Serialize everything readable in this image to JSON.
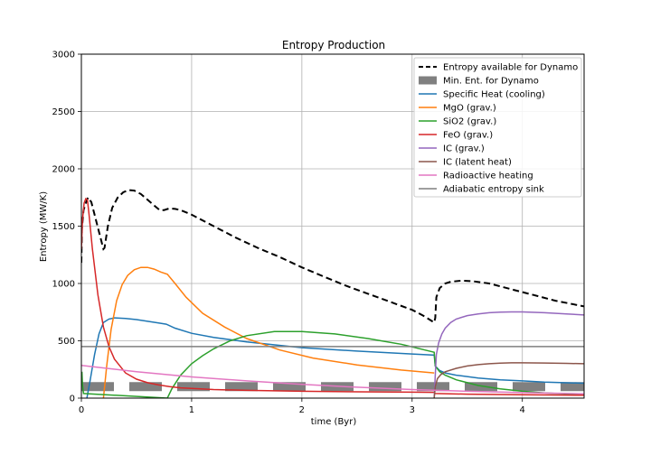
{
  "chart_data": {
    "type": "line",
    "title": "Entropy Production",
    "xlabel": "time (Byr)",
    "ylabel": "Entropy (MW/K)",
    "xlim": [
      0,
      4.56
    ],
    "ylim": [
      0,
      3000
    ],
    "xticks": [
      0,
      1,
      2,
      3,
      4
    ],
    "yticks": [
      0,
      500,
      1000,
      1500,
      2000,
      2500,
      3000
    ],
    "grid": true,
    "legend_position": "top-right",
    "series": [
      {
        "name": "Entropy available for Dynamo",
        "color": "#000000",
        "style": "dashed",
        "x": [
          0,
          0.005,
          0.02,
          0.04,
          0.06,
          0.09,
          0.12,
          0.16,
          0.2,
          0.21,
          0.24,
          0.28,
          0.33,
          0.38,
          0.43,
          0.48,
          0.54,
          0.6,
          0.66,
          0.71,
          0.75,
          0.8,
          0.85,
          0.9,
          1.0,
          1.2,
          1.4,
          1.6,
          1.8,
          2.0,
          2.2,
          2.4,
          2.6,
          2.8,
          3.0,
          3.1,
          3.2,
          3.21,
          3.22,
          3.25,
          3.3,
          3.35,
          3.45,
          3.55,
          3.7,
          3.9,
          4.1,
          4.3,
          4.56
        ],
        "y": [
          1180,
          1480,
          1640,
          1700,
          1750,
          1710,
          1600,
          1450,
          1300,
          1310,
          1500,
          1660,
          1750,
          1795,
          1815,
          1810,
          1780,
          1730,
          1680,
          1640,
          1640,
          1655,
          1650,
          1640,
          1600,
          1500,
          1400,
          1310,
          1230,
          1140,
          1060,
          980,
          910,
          840,
          770,
          720,
          660,
          700,
          880,
          960,
          1000,
          1015,
          1025,
          1020,
          1000,
          950,
          900,
          850,
          800
        ]
      },
      {
        "name": "Min. Ent. for Dynamo",
        "color": "#808080",
        "style": "thick-dashed",
        "x": [
          0,
          4.56
        ],
        "y": [
          100,
          100
        ]
      },
      {
        "name": "Specific Heat (cooling)",
        "color": "#1f77b4",
        "style": "solid",
        "x": [
          0.05,
          0.08,
          0.12,
          0.16,
          0.2,
          0.25,
          0.3,
          0.4,
          0.5,
          0.6,
          0.7,
          0.77,
          0.85,
          1.0,
          1.2,
          1.5,
          2.0,
          2.5,
          3.0,
          3.2,
          3.21,
          3.25,
          3.3,
          3.4,
          3.6,
          3.8,
          4.0,
          4.2,
          4.56
        ],
        "y": [
          0,
          160,
          380,
          560,
          660,
          690,
          700,
          695,
          685,
          670,
          655,
          645,
          610,
          565,
          530,
          490,
          440,
          410,
          385,
          375,
          280,
          240,
          220,
          200,
          175,
          160,
          150,
          140,
          130
        ]
      },
      {
        "name": "MgO (grav.)",
        "color": "#ff7f0e",
        "style": "solid",
        "x": [
          0.2,
          0.23,
          0.27,
          0.32,
          0.37,
          0.42,
          0.48,
          0.54,
          0.6,
          0.66,
          0.72,
          0.78,
          0.85,
          0.95,
          1.1,
          1.3,
          1.5,
          1.8,
          2.1,
          2.5,
          2.9,
          3.2
        ],
        "y": [
          0,
          280,
          600,
          850,
          990,
          1070,
          1120,
          1140,
          1140,
          1125,
          1100,
          1080,
          1000,
          880,
          740,
          620,
          520,
          420,
          350,
          290,
          245,
          220
        ]
      },
      {
        "name": "SiO2 (grav.)",
        "color": "#2ca02c",
        "style": "solid",
        "x": [
          0,
          0.005,
          0.01,
          0.02,
          0.78,
          0.82,
          0.9,
          1.0,
          1.1,
          1.2,
          1.35,
          1.5,
          1.75,
          2.0,
          2.3,
          2.6,
          2.9,
          3.2,
          3.21,
          3.25,
          3.3,
          3.4,
          3.6,
          3.8,
          4.0,
          4.2,
          4.56
        ],
        "y": [
          200,
          230,
          120,
          40,
          0,
          80,
          200,
          300,
          370,
          430,
          500,
          545,
          580,
          580,
          560,
          520,
          470,
          400,
          280,
          230,
          200,
          160,
          110,
          80,
          60,
          45,
          30
        ]
      },
      {
        "name": "FeO (grav.)",
        "color": "#d62728",
        "style": "solid",
        "x": [
          0,
          0.01,
          0.025,
          0.04,
          0.055,
          0.07,
          0.1,
          0.15,
          0.2,
          0.25,
          0.3,
          0.4,
          0.5,
          0.6,
          0.7,
          0.8,
          0.9,
          1.0,
          1.2,
          1.5,
          2.0,
          2.5,
          3.0,
          3.2,
          3.21,
          3.5,
          4.0,
          4.56
        ],
        "y": [
          1300,
          1550,
          1700,
          1740,
          1730,
          1600,
          1300,
          900,
          620,
          450,
          340,
          220,
          165,
          135,
          115,
          100,
          90,
          85,
          75,
          68,
          60,
          55,
          52,
          50,
          40,
          35,
          30,
          25
        ]
      },
      {
        "name": "IC (grav.)",
        "color": "#9467bd",
        "style": "solid",
        "x": [
          3.2,
          3.21,
          3.22,
          3.24,
          3.27,
          3.3,
          3.35,
          3.4,
          3.5,
          3.6,
          3.7,
          3.8,
          3.9,
          4.0,
          4.2,
          4.4,
          4.56
        ],
        "y": [
          0,
          200,
          380,
          480,
          560,
          610,
          660,
          690,
          720,
          735,
          745,
          750,
          752,
          752,
          745,
          735,
          725
        ]
      },
      {
        "name": "IC (latent heat)",
        "color": "#8c564b",
        "style": "solid",
        "x": [
          3.2,
          3.21,
          3.23,
          3.26,
          3.3,
          3.4,
          3.5,
          3.6,
          3.7,
          3.8,
          3.9,
          4.0,
          4.2,
          4.4,
          4.56
        ],
        "y": [
          0,
          100,
          170,
          205,
          230,
          260,
          280,
          292,
          300,
          305,
          308,
          308,
          306,
          303,
          300
        ]
      },
      {
        "name": "Radioactive heating",
        "color": "#e377c2",
        "style": "solid",
        "x": [
          0,
          0.5,
          1.0,
          1.5,
          2.0,
          2.5,
          3.0,
          3.5,
          4.0,
          4.56
        ],
        "y": [
          285,
          230,
          185,
          150,
          120,
          95,
          75,
          60,
          48,
          38
        ]
      },
      {
        "name": "Adiabatic entropy sink",
        "color": "#7f7f7f",
        "style": "solid",
        "x": [
          0,
          4.56
        ],
        "y": [
          450,
          450
        ]
      }
    ]
  }
}
